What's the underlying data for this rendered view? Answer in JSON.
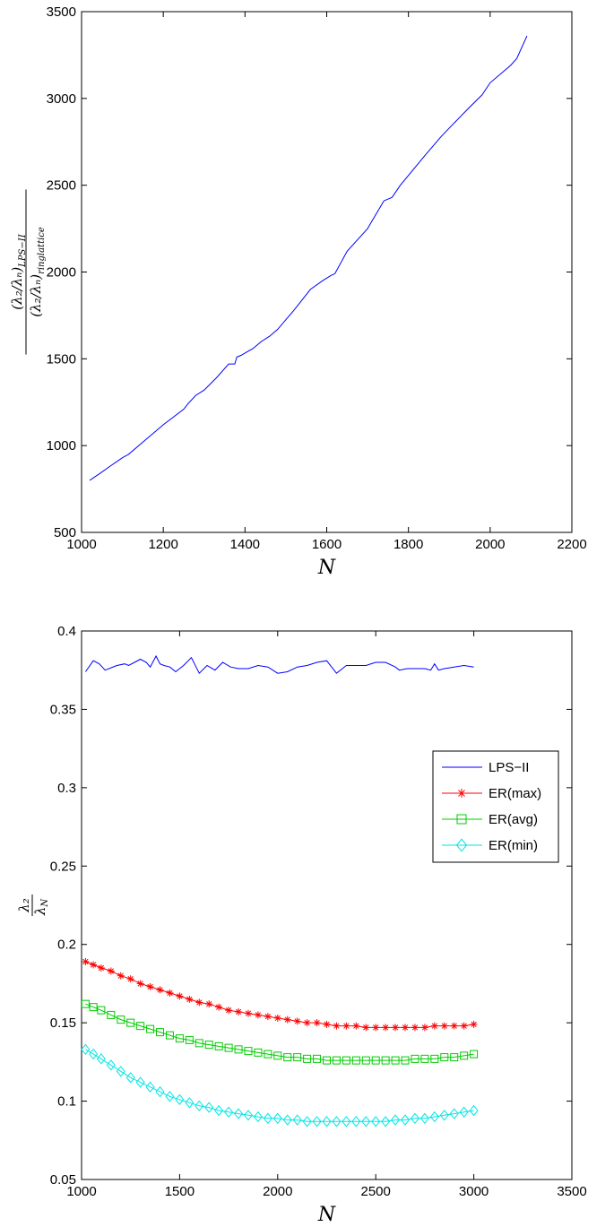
{
  "chart_data": [
    {
      "type": "line",
      "xlabel": "N",
      "ylabel": "(λ2/λN)LPS−II / (λ2/λN)ringlattice",
      "ylabel_parts": {
        "num": "(λ₂/λₙ)",
        "num_sub": "LPS−II",
        "den": "(λ₂/λₙ)",
        "den_sub": "ringlattice"
      },
      "xlim": [
        1000,
        2200
      ],
      "ylim": [
        500,
        3500
      ],
      "xticks": [
        "1000",
        "1200",
        "1400",
        "1600",
        "1800",
        "2000",
        "2200"
      ],
      "yticks": [
        "500",
        "1000",
        "1500",
        "2000",
        "2500",
        "3000",
        "3500"
      ],
      "grid": false,
      "series": [
        {
          "color": "#0000ff",
          "x": [
            1020,
            1045,
            1075,
            1100,
            1115,
            1150,
            1200,
            1250,
            1260,
            1280,
            1300,
            1330,
            1360,
            1375,
            1380,
            1390,
            1420,
            1440,
            1460,
            1480,
            1520,
            1560,
            1590,
            1610,
            1620,
            1650,
            1700,
            1710,
            1740,
            1760,
            1780,
            1840,
            1880,
            1900,
            1950,
            1980,
            2000,
            2050,
            2065,
            2090
          ],
          "y": [
            800,
            840,
            890,
            930,
            950,
            1020,
            1120,
            1210,
            1240,
            1290,
            1320,
            1390,
            1470,
            1470,
            1510,
            1520,
            1560,
            1600,
            1630,
            1670,
            1780,
            1900,
            1950,
            1980,
            1990,
            2120,
            2250,
            2290,
            2410,
            2430,
            2500,
            2670,
            2780,
            2830,
            2950,
            3020,
            3090,
            3190,
            3230,
            3360
          ]
        }
      ]
    },
    {
      "type": "line",
      "xlabel": "N",
      "ylabel": "λ2/λN",
      "ylabel_parts": {
        "num": "λ₂",
        "den": "λ",
        "den_sub": "N"
      },
      "xlim": [
        1000,
        3500
      ],
      "ylim": [
        0.05,
        0.4
      ],
      "xticks": [
        "1000",
        "1500",
        "2000",
        "2500",
        "3000",
        "3500"
      ],
      "yticks": [
        "0.05",
        "0.1",
        "0.15",
        "0.2",
        "0.25",
        "0.3",
        "0.35",
        "0.4"
      ],
      "grid": false,
      "legend": "right",
      "series": [
        {
          "name": "LPS−II",
          "color": "#0000ff",
          "marker": "none",
          "x": [
            1020,
            1060,
            1090,
            1120,
            1180,
            1220,
            1240,
            1270,
            1300,
            1330,
            1350,
            1380,
            1400,
            1420,
            1450,
            1480,
            1520,
            1560,
            1600,
            1640,
            1680,
            1720,
            1760,
            1800,
            1850,
            1900,
            1950,
            2000,
            2050,
            2100,
            2150,
            2200,
            2250,
            2300,
            2350,
            2400,
            2450,
            2500,
            2550,
            2600,
            2620,
            2660,
            2700,
            2750,
            2780,
            2800,
            2820,
            2850,
            2900,
            2950,
            3000
          ],
          "y": [
            0.374,
            0.381,
            0.379,
            0.375,
            0.378,
            0.379,
            0.378,
            0.38,
            0.382,
            0.38,
            0.377,
            0.384,
            0.379,
            0.378,
            0.377,
            0.374,
            0.378,
            0.383,
            0.373,
            0.378,
            0.375,
            0.38,
            0.377,
            0.376,
            0.376,
            0.378,
            0.377,
            0.373,
            0.374,
            0.377,
            0.378,
            0.38,
            0.381,
            0.373,
            0.378,
            0.378,
            0.378,
            0.38,
            0.38,
            0.377,
            0.375,
            0.376,
            0.376,
            0.376,
            0.375,
            0.379,
            0.375,
            0.376,
            0.377,
            0.378,
            0.377
          ]
        },
        {
          "name": "ER(max)",
          "color": "#ff0000",
          "marker": "star",
          "x": [
            1020,
            1060,
            1100,
            1150,
            1200,
            1250,
            1300,
            1350,
            1400,
            1450,
            1500,
            1550,
            1600,
            1650,
            1700,
            1750,
            1800,
            1850,
            1900,
            1950,
            2000,
            2050,
            2100,
            2150,
            2200,
            2250,
            2300,
            2350,
            2400,
            2450,
            2500,
            2550,
            2600,
            2650,
            2700,
            2750,
            2800,
            2850,
            2900,
            2950,
            3000
          ],
          "y": [
            0.189,
            0.187,
            0.185,
            0.183,
            0.18,
            0.178,
            0.175,
            0.173,
            0.171,
            0.169,
            0.167,
            0.165,
            0.163,
            0.162,
            0.16,
            0.158,
            0.157,
            0.156,
            0.155,
            0.154,
            0.153,
            0.152,
            0.151,
            0.15,
            0.15,
            0.149,
            0.148,
            0.148,
            0.148,
            0.147,
            0.147,
            0.147,
            0.147,
            0.147,
            0.147,
            0.147,
            0.148,
            0.148,
            0.148,
            0.148,
            0.149
          ]
        },
        {
          "name": "ER(avg)",
          "color": "#00cc00",
          "marker": "square",
          "x": [
            1020,
            1060,
            1100,
            1150,
            1200,
            1250,
            1300,
            1350,
            1400,
            1450,
            1500,
            1550,
            1600,
            1650,
            1700,
            1750,
            1800,
            1850,
            1900,
            1950,
            2000,
            2050,
            2100,
            2150,
            2200,
            2250,
            2300,
            2350,
            2400,
            2450,
            2500,
            2550,
            2600,
            2650,
            2700,
            2750,
            2800,
            2850,
            2900,
            2950,
            3000
          ],
          "y": [
            0.162,
            0.16,
            0.158,
            0.155,
            0.152,
            0.15,
            0.148,
            0.146,
            0.144,
            0.142,
            0.14,
            0.139,
            0.137,
            0.136,
            0.135,
            0.134,
            0.133,
            0.132,
            0.131,
            0.13,
            0.129,
            0.128,
            0.128,
            0.127,
            0.127,
            0.126,
            0.126,
            0.126,
            0.126,
            0.126,
            0.126,
            0.126,
            0.126,
            0.126,
            0.127,
            0.127,
            0.127,
            0.128,
            0.128,
            0.129,
            0.13
          ]
        },
        {
          "name": "ER(min)",
          "color": "#00e5e5",
          "marker": "diamond",
          "x": [
            1020,
            1060,
            1100,
            1150,
            1200,
            1250,
            1300,
            1350,
            1400,
            1450,
            1500,
            1550,
            1600,
            1650,
            1700,
            1750,
            1800,
            1850,
            1900,
            1950,
            2000,
            2050,
            2100,
            2150,
            2200,
            2250,
            2300,
            2350,
            2400,
            2450,
            2500,
            2550,
            2600,
            2650,
            2700,
            2750,
            2800,
            2850,
            2900,
            2950,
            3000
          ],
          "y": [
            0.133,
            0.13,
            0.127,
            0.123,
            0.119,
            0.115,
            0.112,
            0.109,
            0.106,
            0.103,
            0.101,
            0.099,
            0.097,
            0.096,
            0.094,
            0.093,
            0.092,
            0.091,
            0.09,
            0.089,
            0.089,
            0.088,
            0.088,
            0.087,
            0.087,
            0.087,
            0.087,
            0.087,
            0.087,
            0.087,
            0.087,
            0.087,
            0.088,
            0.088,
            0.089,
            0.089,
            0.09,
            0.091,
            0.092,
            0.093,
            0.094
          ]
        }
      ]
    }
  ]
}
